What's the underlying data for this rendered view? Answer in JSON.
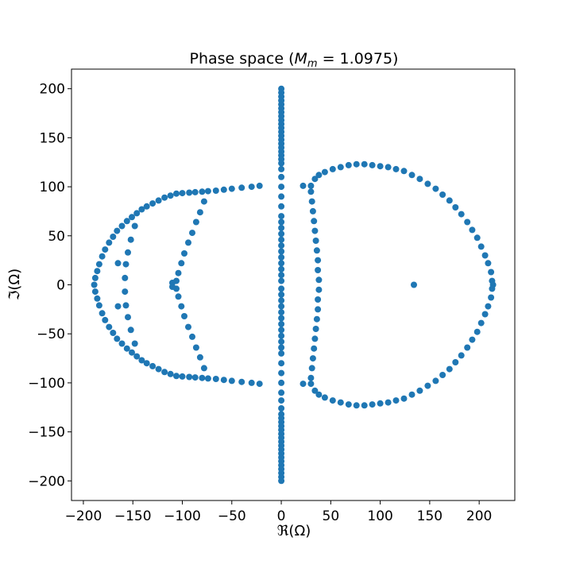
{
  "chart_data": {
    "type": "scatter",
    "title_text": "Phase space (",
    "title_math": "M",
    "title_sub": "m",
    "title_rest": " = 1.0975)",
    "xlabel": "ℜ(Ω)",
    "ylabel": "ℑ(Ω)",
    "xlim": [
      -212,
      236
    ],
    "ylim": [
      -220,
      220
    ],
    "xticks": [
      -200,
      -150,
      -100,
      -50,
      0,
      50,
      100,
      150,
      200
    ],
    "yticks": [
      -200,
      -150,
      -100,
      -50,
      0,
      50,
      100,
      150,
      200
    ],
    "xtick_labels": [
      "−200",
      "−150",
      "−100",
      "−50",
      "0",
      "50",
      "100",
      "150",
      "200"
    ],
    "ytick_labels": [
      "−200",
      "−150",
      "−100",
      "−50",
      "0",
      "50",
      "100",
      "150",
      "200"
    ],
    "grid": false,
    "color": "#1f77b4",
    "series": [
      {
        "name": "imaginary-axis",
        "points": [
          [
            0,
            200
          ],
          [
            0,
            196
          ],
          [
            0,
            192
          ],
          [
            0,
            188
          ],
          [
            0,
            184
          ],
          [
            0,
            180
          ],
          [
            0,
            176
          ],
          [
            0,
            172
          ],
          [
            0,
            168
          ],
          [
            0,
            164
          ],
          [
            0,
            160
          ],
          [
            0,
            156
          ],
          [
            0,
            152
          ],
          [
            0,
            148
          ],
          [
            0,
            144
          ],
          [
            0,
            140
          ],
          [
            0,
            136
          ],
          [
            0,
            132
          ],
          [
            0,
            128
          ],
          [
            0,
            124
          ],
          [
            0,
            118
          ],
          [
            0,
            110
          ],
          [
            0,
            100
          ],
          [
            0,
            90
          ],
          [
            0,
            80
          ],
          [
            0,
            70
          ],
          [
            0,
            64
          ],
          [
            0,
            58
          ],
          [
            0,
            52
          ],
          [
            0,
            46
          ],
          [
            0,
            40
          ],
          [
            0,
            34
          ],
          [
            0,
            28
          ],
          [
            0,
            22
          ],
          [
            0,
            16
          ],
          [
            0,
            10
          ],
          [
            0,
            4
          ],
          [
            0,
            -4
          ],
          [
            0,
            -10
          ],
          [
            0,
            -16
          ],
          [
            0,
            -22
          ],
          [
            0,
            -28
          ],
          [
            0,
            -34
          ],
          [
            0,
            -40
          ],
          [
            0,
            -46
          ],
          [
            0,
            -52
          ],
          [
            0,
            -58
          ],
          [
            0,
            -64
          ],
          [
            0,
            -70
          ],
          [
            0,
            -80
          ],
          [
            0,
            -90
          ],
          [
            0,
            -100
          ],
          [
            0,
            -110
          ],
          [
            0,
            -118
          ],
          [
            0,
            -126
          ],
          [
            0,
            -132
          ],
          [
            0,
            -136
          ],
          [
            0,
            -140
          ],
          [
            0,
            -144
          ],
          [
            0,
            -148
          ],
          [
            0,
            -152
          ],
          [
            0,
            -156
          ],
          [
            0,
            -160
          ],
          [
            0,
            -164
          ],
          [
            0,
            -168
          ],
          [
            0,
            -172
          ],
          [
            0,
            -176
          ],
          [
            0,
            -180
          ],
          [
            0,
            -184
          ],
          [
            0,
            -188
          ],
          [
            0,
            -192
          ],
          [
            0,
            -196
          ],
          [
            0,
            -200
          ]
        ]
      },
      {
        "name": "left-outer-curve",
        "points": [
          [
            -22,
            101
          ],
          [
            -30,
            100
          ],
          [
            -40,
            99
          ],
          [
            -50,
            98
          ],
          [
            -58,
            97
          ],
          [
            -66,
            96
          ],
          [
            -74,
            95.5
          ],
          [
            -80,
            95
          ],
          [
            -87,
            94.5
          ],
          [
            -93,
            94
          ],
          [
            -100,
            93.5
          ],
          [
            -106,
            93
          ],
          [
            -112,
            91
          ],
          [
            -118,
            89
          ],
          [
            -124,
            86
          ],
          [
            -130,
            83
          ],
          [
            -136,
            80
          ],
          [
            -141,
            77
          ],
          [
            -146,
            73
          ],
          [
            -151,
            69
          ],
          [
            -156,
            65
          ],
          [
            -161,
            60
          ],
          [
            -166,
            55
          ],
          [
            -170,
            49
          ],
          [
            -174,
            43
          ],
          [
            -178,
            36
          ],
          [
            -181,
            29
          ],
          [
            -184,
            21
          ],
          [
            -186,
            14
          ],
          [
            -188,
            7
          ],
          [
            -189,
            0
          ],
          [
            -188,
            -7
          ],
          [
            -186,
            -14
          ],
          [
            -184,
            -21
          ],
          [
            -181,
            -29
          ],
          [
            -178,
            -36
          ],
          [
            -174,
            -43
          ],
          [
            -170,
            -49
          ],
          [
            -166,
            -55
          ],
          [
            -161,
            -60
          ],
          [
            -156,
            -65
          ],
          [
            -151,
            -69
          ],
          [
            -146,
            -73
          ],
          [
            -141,
            -77
          ],
          [
            -136,
            -80
          ],
          [
            -130,
            -83
          ],
          [
            -124,
            -86
          ],
          [
            -118,
            -89
          ],
          [
            -112,
            -91
          ],
          [
            -106,
            -93
          ],
          [
            -100,
            -93.5
          ],
          [
            -93,
            -94
          ],
          [
            -87,
            -94.5
          ],
          [
            -80,
            -95
          ],
          [
            -74,
            -95.5
          ],
          [
            -66,
            -96
          ],
          [
            -58,
            -97
          ],
          [
            -50,
            -98
          ],
          [
            -40,
            -99
          ],
          [
            -30,
            -100
          ],
          [
            -22,
            -101
          ]
        ]
      },
      {
        "name": "left-inner-arc",
        "points": [
          [
            -78,
            85
          ],
          [
            -82,
            74
          ],
          [
            -86,
            64
          ],
          [
            -90,
            53
          ],
          [
            -94,
            43
          ],
          [
            -98,
            32
          ],
          [
            -101,
            22
          ],
          [
            -104,
            12
          ],
          [
            -106,
            4
          ],
          [
            -106,
            -4
          ],
          [
            -104,
            -12
          ],
          [
            -101,
            -22
          ],
          [
            -98,
            -32
          ],
          [
            -94,
            -43
          ],
          [
            -90,
            -53
          ],
          [
            -86,
            -64
          ],
          [
            -82,
            -74
          ],
          [
            -78,
            -85
          ]
        ]
      },
      {
        "name": "left-small-arc",
        "points": [
          [
            -148,
            60
          ],
          [
            -152,
            46
          ],
          [
            -155,
            33
          ],
          [
            -157,
            21
          ],
          [
            -158,
            7
          ],
          [
            -158,
            -7
          ],
          [
            -157,
            -21
          ],
          [
            -155,
            -33
          ],
          [
            -152,
            -46
          ],
          [
            -148,
            -60
          ]
        ]
      },
      {
        "name": "left-isolated",
        "points": [
          [
            -110,
            2
          ],
          [
            -110,
            -2
          ],
          [
            -165,
            22
          ],
          [
            -165,
            -22
          ]
        ]
      },
      {
        "name": "right-circle",
        "points": [
          [
            22,
            101
          ],
          [
            30,
            101
          ],
          [
            34,
            108
          ],
          [
            38,
            112
          ],
          [
            44,
            115
          ],
          [
            52,
            118
          ],
          [
            60,
            120
          ],
          [
            68,
            122
          ],
          [
            76,
            123
          ],
          [
            84,
            123
          ],
          [
            92,
            122
          ],
          [
            100,
            121
          ],
          [
            108,
            120
          ],
          [
            116,
            118
          ],
          [
            124,
            116
          ],
          [
            132,
            112
          ],
          [
            140,
            108
          ],
          [
            148,
            103
          ],
          [
            156,
            98
          ],
          [
            163,
            92
          ],
          [
            170,
            86
          ],
          [
            176,
            79
          ],
          [
            182,
            72
          ],
          [
            188,
            64
          ],
          [
            193,
            56
          ],
          [
            198,
            48
          ],
          [
            202,
            39
          ],
          [
            206,
            30
          ],
          [
            209,
            22
          ],
          [
            212,
            13
          ],
          [
            213,
            4
          ],
          [
            214,
            0
          ],
          [
            213,
            -4
          ],
          [
            212,
            -13
          ],
          [
            209,
            -22
          ],
          [
            206,
            -30
          ],
          [
            202,
            -39
          ],
          [
            198,
            -48
          ],
          [
            193,
            -56
          ],
          [
            188,
            -64
          ],
          [
            182,
            -72
          ],
          [
            176,
            -79
          ],
          [
            170,
            -86
          ],
          [
            163,
            -92
          ],
          [
            156,
            -98
          ],
          [
            148,
            -103
          ],
          [
            140,
            -108
          ],
          [
            132,
            -112
          ],
          [
            124,
            -116
          ],
          [
            116,
            -118
          ],
          [
            108,
            -120
          ],
          [
            100,
            -121
          ],
          [
            92,
            -122
          ],
          [
            84,
            -123
          ],
          [
            76,
            -123
          ],
          [
            68,
            -122
          ],
          [
            60,
            -120
          ],
          [
            52,
            -118
          ],
          [
            44,
            -115
          ],
          [
            38,
            -112
          ],
          [
            34,
            -108
          ],
          [
            30,
            -101
          ],
          [
            22,
            -101
          ]
        ]
      },
      {
        "name": "right-inner-line",
        "points": [
          [
            30,
            95
          ],
          [
            31,
            85
          ],
          [
            32,
            75
          ],
          [
            33,
            65
          ],
          [
            34,
            55
          ],
          [
            35,
            45
          ],
          [
            36,
            35
          ],
          [
            37,
            25
          ],
          [
            37,
            15
          ],
          [
            38,
            5
          ],
          [
            38,
            -5
          ],
          [
            37,
            -15
          ],
          [
            37,
            -25
          ],
          [
            36,
            -35
          ],
          [
            35,
            -45
          ],
          [
            34,
            -55
          ],
          [
            33,
            -65
          ],
          [
            32,
            -75
          ],
          [
            31,
            -85
          ],
          [
            30,
            -95
          ]
        ]
      },
      {
        "name": "right-isolated",
        "points": [
          [
            134,
            0
          ]
        ]
      }
    ]
  }
}
